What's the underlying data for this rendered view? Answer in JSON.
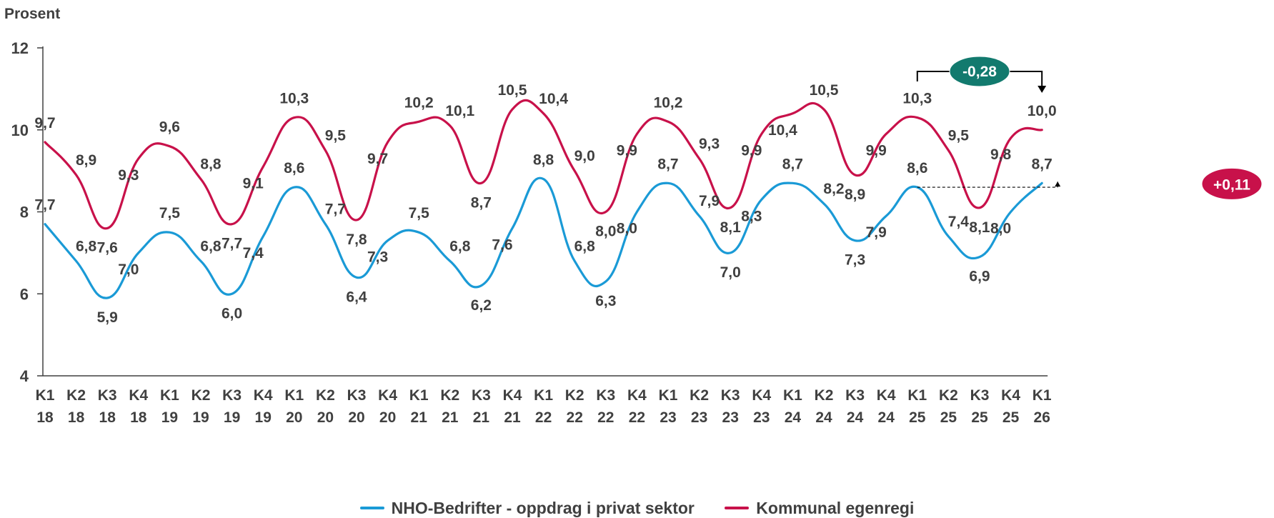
{
  "y_axis_label": "Prosent",
  "colors": {
    "blue": "#1a9ad6",
    "red": "#c8114a",
    "teal": "#127a6e",
    "axis": "#404040"
  },
  "annotations": {
    "red_change": "-0,28",
    "blue_change": "+0,11"
  },
  "chart_data": {
    "type": "line",
    "categories": [
      [
        "K1",
        "18"
      ],
      [
        "K2",
        "18"
      ],
      [
        "K3",
        "18"
      ],
      [
        "K4",
        "18"
      ],
      [
        "K1",
        "19"
      ],
      [
        "K2",
        "19"
      ],
      [
        "K3",
        "19"
      ],
      [
        "K4",
        "19"
      ],
      [
        "K1",
        "20"
      ],
      [
        "K2",
        "20"
      ],
      [
        "K3",
        "20"
      ],
      [
        "K4",
        "20"
      ],
      [
        "K1",
        "21"
      ],
      [
        "K2",
        "21"
      ],
      [
        "K3",
        "21"
      ],
      [
        "K4",
        "21"
      ],
      [
        "K1",
        "22"
      ],
      [
        "K2",
        "22"
      ],
      [
        "K3",
        "22"
      ],
      [
        "K4",
        "22"
      ],
      [
        "K1",
        "23"
      ],
      [
        "K2",
        "23"
      ],
      [
        "K3",
        "23"
      ],
      [
        "K4",
        "23"
      ],
      [
        "K1",
        "24"
      ],
      [
        "K2",
        "24"
      ],
      [
        "K3",
        "24"
      ],
      [
        "K4",
        "24"
      ],
      [
        "K1",
        "25"
      ],
      [
        "K2",
        "25"
      ],
      [
        "K3",
        "25"
      ],
      [
        "K4",
        "25"
      ],
      [
        "K1",
        "26"
      ]
    ],
    "series": [
      {
        "name": "NHO-Bedrifter - oppdrag i privat sektor",
        "color": "#1a9ad6",
        "values": [
          7.7,
          6.8,
          5.9,
          7.0,
          7.5,
          6.8,
          6.0,
          7.4,
          8.6,
          7.7,
          6.4,
          7.3,
          7.5,
          6.8,
          6.2,
          7.6,
          8.8,
          6.8,
          6.3,
          8.0,
          8.7,
          7.9,
          7.0,
          8.3,
          8.7,
          8.2,
          7.3,
          7.9,
          8.6,
          7.4,
          6.9,
          8.0,
          8.7
        ],
        "labels": [
          "7,7",
          "6,8",
          "5,9",
          "7,0",
          "7,5",
          "6,8",
          "6,0",
          "7,4",
          "8,6",
          "7,7",
          "6,4",
          "7,3",
          "7,5",
          "6,8",
          "6,2",
          "7,6",
          "8,8",
          "6,8",
          "6,3",
          "8,0",
          "8,7",
          "7,9",
          "7,0",
          "8,3",
          "8,7",
          "8,2",
          "7,3",
          "7,9",
          "8,6",
          "7,4",
          "6,9",
          "8,0",
          "8,7"
        ]
      },
      {
        "name": "Kommunal egenregi",
        "color": "#c8114a",
        "values": [
          9.7,
          8.9,
          7.6,
          9.3,
          9.6,
          8.8,
          7.7,
          9.1,
          10.3,
          9.5,
          7.8,
          9.7,
          10.2,
          10.1,
          8.7,
          10.5,
          10.4,
          9.0,
          8.0,
          9.9,
          10.2,
          9.3,
          8.1,
          9.9,
          10.4,
          10.5,
          8.9,
          9.9,
          10.3,
          9.5,
          8.1,
          9.8,
          10.0
        ],
        "labels": [
          "9,7",
          "8,9",
          "7,6",
          "9,3",
          "9,6",
          "8,8",
          "7,7",
          "9,1",
          "10,3",
          "9,5",
          "7,8",
          "9,7",
          "10,2",
          "10,1",
          "8,7",
          "10,5",
          "10,4",
          "9,0",
          "8,0",
          "9,9",
          "10,2",
          "9,3",
          "8,1",
          "9,9",
          "10,4",
          "10,5",
          "8,9",
          "9,9",
          "10,3",
          "9,5",
          "8,1",
          "9,8",
          "10,0"
        ]
      }
    ],
    "ylim": [
      4,
      12
    ],
    "yticks": [
      4,
      6,
      8,
      10,
      12
    ],
    "grid": false,
    "legend": "bottom"
  }
}
